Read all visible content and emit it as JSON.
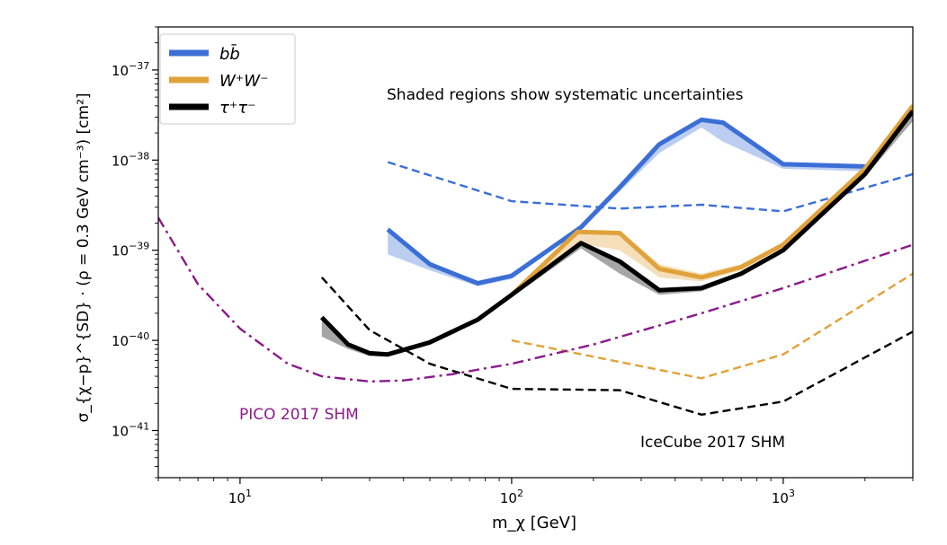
{
  "chart_data": {
    "type": "line",
    "xlabel": "m_χ [GeV]",
    "ylabel": "σ_{χ−p}^{SD} · (ρ = 0.3 GeV cm⁻³) [cm²]",
    "xscale": "log",
    "yscale": "log",
    "xlim": [
      5,
      3000
    ],
    "ylim": [
      3e-42,
      3e-37
    ],
    "x_ticks": [
      {
        "value": 10,
        "base": "10",
        "exp": "1"
      },
      {
        "value": 100,
        "base": "10",
        "exp": "2"
      },
      {
        "value": 1000,
        "base": "10",
        "exp": "3"
      }
    ],
    "y_ticks": [
      {
        "value": 1e-41,
        "base": "10",
        "exp": "−41"
      },
      {
        "value": 1e-40,
        "base": "10",
        "exp": "−40"
      },
      {
        "value": 1e-39,
        "base": "10",
        "exp": "−39"
      },
      {
        "value": 1e-38,
        "base": "10",
        "exp": "−38"
      },
      {
        "value": 1e-37,
        "base": "10",
        "exp": "−37"
      }
    ],
    "grid": false,
    "legend_position": "top-left",
    "annotation": "Shaded regions show systematic uncertainties",
    "series": [
      {
        "name": "bb̄",
        "color": "#3b6fd6",
        "style": "solid",
        "x": [
          35,
          50,
          75,
          100,
          180,
          250,
          350,
          500,
          600,
          1000,
          2000
        ],
        "y": [
          1.7e-39,
          7e-40,
          4.3e-40,
          5.2e-40,
          1.8e-39,
          5e-39,
          1.5e-38,
          2.8e-38,
          2.6e-38,
          9e-39,
          8.5e-39
        ],
        "band_low": [
          9e-40,
          6e-40,
          4e-40,
          4.8e-40,
          1.7e-39,
          4.5e-39,
          1.2e-38,
          2.3e-38,
          1.6e-38,
          8e-39,
          7.5e-39
        ],
        "band_high": [
          1.8e-39,
          7.2e-40,
          4.5e-40,
          5.4e-40,
          1.85e-39,
          5.2e-39,
          1.55e-38,
          2.9e-38,
          2.7e-38,
          9.2e-39,
          8.7e-39
        ]
      },
      {
        "name": "W⁺W⁻",
        "color": "#e0a23a",
        "style": "solid",
        "x": [
          100,
          175,
          250,
          350,
          500,
          700,
          1000,
          2000,
          3000
        ],
        "y": [
          3.2e-40,
          1.6e-39,
          1.55e-39,
          6.2e-40,
          5e-40,
          6.5e-40,
          1.15e-39,
          8e-39,
          4e-38
        ],
        "band_low": [
          3e-40,
          1.2e-39,
          1e-39,
          5e-40,
          4.5e-40,
          6e-40,
          1.1e-39,
          7.5e-39,
          3.6e-38
        ],
        "band_high": [
          3.4e-40,
          1.7e-39,
          1.65e-39,
          7e-40,
          5.5e-40,
          7e-40,
          1.2e-39,
          8.5e-39,
          4.3e-38
        ]
      },
      {
        "name": "τ⁺τ⁻",
        "color": "#000000",
        "style": "solid",
        "x": [
          20,
          25,
          30,
          35,
          50,
          75,
          100,
          180,
          250,
          350,
          500,
          700,
          1000,
          2000,
          3000
        ],
        "y": [
          1.8e-40,
          9e-41,
          7.2e-41,
          7e-41,
          9.5e-41,
          1.7e-40,
          3.2e-40,
          1.2e-39,
          7.5e-40,
          3.6e-40,
          3.8e-40,
          5.5e-40,
          1e-39,
          7e-39,
          3.5e-38
        ],
        "band_low": [
          1.1e-40,
          8e-41,
          6.7e-41,
          6.6e-41,
          9e-41,
          1.6e-40,
          3e-40,
          1.05e-39,
          5.5e-40,
          3.2e-40,
          3.5e-40,
          5.2e-40,
          9.5e-40,
          6.5e-39,
          2.7e-38
        ],
        "band_high": [
          1.85e-40,
          9.2e-41,
          7.4e-41,
          7.2e-41,
          9.8e-41,
          1.75e-40,
          3.3e-40,
          1.25e-39,
          7.8e-40,
          3.8e-40,
          3.9e-40,
          5.7e-40,
          1.05e-39,
          7.2e-39,
          3.7e-38
        ]
      },
      {
        "color": "#3b6fd6",
        "style": "dashed",
        "x": [
          35,
          100,
          250,
          500,
          1000,
          3000
        ],
        "y": [
          9.5e-39,
          3.5e-39,
          2.9e-39,
          3.2e-39,
          2.7e-39,
          7e-39
        ]
      },
      {
        "color": "#e0a23a",
        "style": "dashed",
        "x": [
          100,
          500,
          1000,
          3000
        ],
        "y": [
          1e-40,
          3.8e-41,
          7e-41,
          5.5e-40
        ]
      },
      {
        "color": "#000000",
        "style": "dashed",
        "x": [
          20,
          30,
          50,
          100,
          250,
          500,
          1000,
          3000
        ],
        "y": [
          5e-40,
          1.3e-40,
          5.5e-41,
          2.9e-41,
          2.8e-41,
          1.5e-41,
          2.1e-41,
          1.25e-40
        ]
      },
      {
        "name": "PICO 2017 SHM",
        "color": "#8b1a8b",
        "style": "dashdot",
        "x": [
          5,
          7,
          10,
          15,
          20,
          30,
          40,
          60,
          100,
          200,
          500,
          1000,
          3000
        ],
        "y": [
          2.3e-39,
          4.2e-40,
          1.35e-40,
          5.5e-41,
          4e-41,
          3.5e-41,
          3.6e-41,
          4.2e-41,
          5.5e-41,
          9e-41,
          2e-40,
          3.8e-40,
          1.15e-39
        ]
      }
    ],
    "labels": {
      "pico": "PICO 2017 SHM",
      "icecube": "IceCube 2017 SHM"
    }
  }
}
